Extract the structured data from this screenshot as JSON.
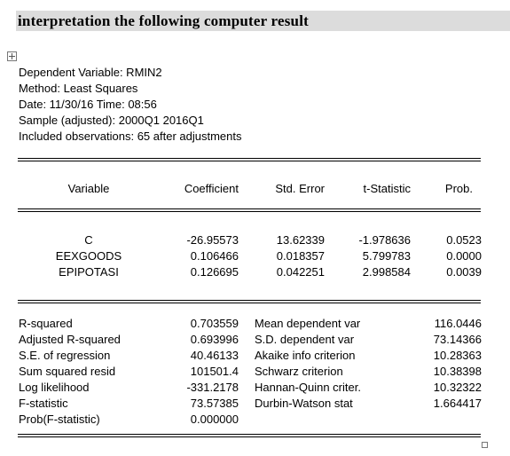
{
  "heading": "interpretation the following computer result",
  "meta": [
    "Dependent Variable: RMIN2",
    "Method: Least Squares",
    "Date: 11/30/16   Time: 08:56",
    "Sample (adjusted): 2000Q1 2016Q1",
    "Included observations: 65 after adjustments"
  ],
  "columns": [
    "Variable",
    "Coefficient",
    "Std. Error",
    "t-Statistic",
    "Prob."
  ],
  "rows": [
    {
      "variable": "C",
      "coefficient": "-26.95573",
      "std_error": "13.62339",
      "t_statistic": "-1.978636",
      "prob": "0.0523"
    },
    {
      "variable": "EEXGOODS",
      "coefficient": "0.106466",
      "std_error": "0.018357",
      "t_statistic": "5.799783",
      "prob": "0.0000"
    },
    {
      "variable": "EPIPOTASI",
      "coefficient": "0.126695",
      "std_error": "0.042251",
      "t_statistic": "2.998584",
      "prob": "0.0039"
    }
  ],
  "stats_left": [
    {
      "label": "R-squared",
      "value": "0.703559"
    },
    {
      "label": "Adjusted R-squared",
      "value": "0.693996"
    },
    {
      "label": "S.E. of regression",
      "value": "40.46133"
    },
    {
      "label": "Sum squared resid",
      "value": "101501.4"
    },
    {
      "label": "Log likelihood",
      "value": "-331.2178"
    },
    {
      "label": "F-statistic",
      "value": "73.57385"
    },
    {
      "label": "Prob(F-statistic)",
      "value": "0.000000"
    }
  ],
  "stats_right": [
    {
      "label": "Mean dependent var",
      "value": "116.0446"
    },
    {
      "label": "S.D. dependent var",
      "value": "73.14366"
    },
    {
      "label": "Akaike info criterion",
      "value": "10.28363"
    },
    {
      "label": "Schwarz criterion",
      "value": "10.38398"
    },
    {
      "label": "Hannan-Quinn criter.",
      "value": "10.32322"
    },
    {
      "label": "Durbin-Watson stat",
      "value": "1.664417"
    }
  ]
}
